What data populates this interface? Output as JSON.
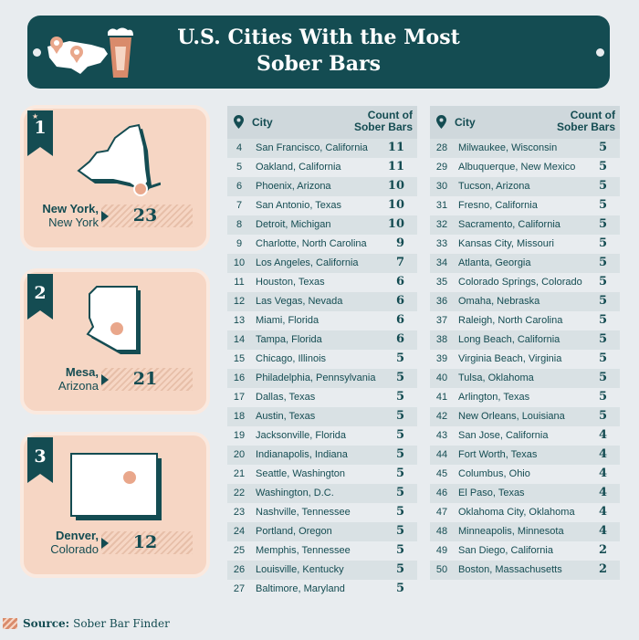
{
  "header": {
    "title_line1": "U.S. Cities With the Most",
    "title_line2": "Sober Bars"
  },
  "top3": [
    {
      "rank": "1",
      "city": "New York,",
      "state": "New York",
      "count": "23"
    },
    {
      "rank": "2",
      "city": "Mesa,",
      "state": "Arizona",
      "count": "21"
    },
    {
      "rank": "3",
      "city": "Denver,",
      "state": "Colorado",
      "count": "12"
    }
  ],
  "table_headers": {
    "city": "City",
    "count_line1": "Count of",
    "count_line2": "Sober Bars"
  },
  "table_left": [
    {
      "rank": "4",
      "city": "San Francisco, California",
      "count": "11"
    },
    {
      "rank": "5",
      "city": "Oakland, California",
      "count": "11"
    },
    {
      "rank": "6",
      "city": "Phoenix, Arizona",
      "count": "10"
    },
    {
      "rank": "7",
      "city": "San Antonio, Texas",
      "count": "10"
    },
    {
      "rank": "8",
      "city": "Detroit, Michigan",
      "count": "10"
    },
    {
      "rank": "9",
      "city": "Charlotte, North Carolina",
      "count": "9"
    },
    {
      "rank": "10",
      "city": "Los Angeles, California",
      "count": "7"
    },
    {
      "rank": "11",
      "city": "Houston, Texas",
      "count": "6"
    },
    {
      "rank": "12",
      "city": "Las Vegas, Nevada",
      "count": "6"
    },
    {
      "rank": "13",
      "city": "Miami, Florida",
      "count": "6"
    },
    {
      "rank": "14",
      "city": "Tampa, Florida",
      "count": "6"
    },
    {
      "rank": "15",
      "city": "Chicago, Illinois",
      "count": "5"
    },
    {
      "rank": "16",
      "city": "Philadelphia, Pennsylvania",
      "count": "5"
    },
    {
      "rank": "17",
      "city": "Dallas, Texas",
      "count": "5"
    },
    {
      "rank": "18",
      "city": "Austin, Texas",
      "count": "5"
    },
    {
      "rank": "19",
      "city": "Jacksonville, Florida",
      "count": "5"
    },
    {
      "rank": "20",
      "city": "Indianapolis, Indiana",
      "count": "5"
    },
    {
      "rank": "21",
      "city": "Seattle, Washington",
      "count": "5"
    },
    {
      "rank": "22",
      "city": "Washington, D.C.",
      "count": "5"
    },
    {
      "rank": "23",
      "city": "Nashville, Tennessee",
      "count": "5"
    },
    {
      "rank": "24",
      "city": "Portland, Oregon",
      "count": "5"
    },
    {
      "rank": "25",
      "city": "Memphis, Tennessee",
      "count": "5"
    },
    {
      "rank": "26",
      "city": "Louisville, Kentucky",
      "count": "5"
    },
    {
      "rank": "27",
      "city": "Baltimore, Maryland",
      "count": "5"
    }
  ],
  "table_right": [
    {
      "rank": "28",
      "city": "Milwaukee, Wisconsin",
      "count": "5"
    },
    {
      "rank": "29",
      "city": "Albuquerque, New Mexico",
      "count": "5"
    },
    {
      "rank": "30",
      "city": "Tucson, Arizona",
      "count": "5"
    },
    {
      "rank": "31",
      "city": "Fresno, California",
      "count": "5"
    },
    {
      "rank": "32",
      "city": "Sacramento, California",
      "count": "5"
    },
    {
      "rank": "33",
      "city": "Kansas City, Missouri",
      "count": "5"
    },
    {
      "rank": "34",
      "city": "Atlanta, Georgia",
      "count": "5"
    },
    {
      "rank": "35",
      "city": "Colorado Springs, Colorado",
      "count": "5"
    },
    {
      "rank": "36",
      "city": "Omaha, Nebraska",
      "count": "5"
    },
    {
      "rank": "37",
      "city": "Raleigh, North Carolina",
      "count": "5"
    },
    {
      "rank": "38",
      "city": "Long Beach, California",
      "count": "5"
    },
    {
      "rank": "39",
      "city": "Virginia Beach, Virginia",
      "count": "5"
    },
    {
      "rank": "40",
      "city": "Tulsa, Oklahoma",
      "count": "5"
    },
    {
      "rank": "41",
      "city": "Arlington, Texas",
      "count": "5"
    },
    {
      "rank": "42",
      "city": "New Orleans, Louisiana",
      "count": "5"
    },
    {
      "rank": "43",
      "city": "San Jose, California",
      "count": "4"
    },
    {
      "rank": "44",
      "city": "Fort Worth, Texas",
      "count": "4"
    },
    {
      "rank": "45",
      "city": "Columbus, Ohio",
      "count": "4"
    },
    {
      "rank": "46",
      "city": "El Paso, Texas",
      "count": "4"
    },
    {
      "rank": "47",
      "city": "Oklahoma City, Oklahoma",
      "count": "4"
    },
    {
      "rank": "48",
      "city": "Minneapolis, Minnesota",
      "count": "4"
    },
    {
      "rank": "49",
      "city": "San Diego, California",
      "count": "2"
    },
    {
      "rank": "50",
      "city": "Boston, Massachusetts",
      "count": "2"
    }
  ],
  "source": {
    "label": "Source:",
    "text": "Sober Bar Finder"
  },
  "colors": {
    "teal": "#144c52",
    "peach": "#f6d6c4",
    "coral": "#d98b6b"
  }
}
